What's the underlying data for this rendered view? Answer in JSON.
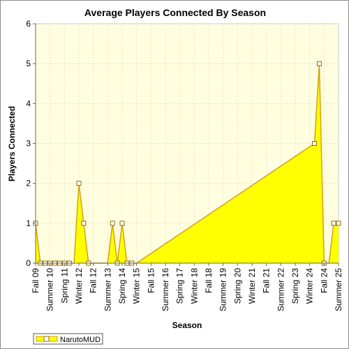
{
  "chart_data": {
    "type": "area",
    "title": "Average Players Connected By Season",
    "xlabel": "Season",
    "ylabel": "Players Connected",
    "ylim": [
      0,
      6
    ],
    "yticks": [
      0,
      1,
      2,
      3,
      4,
      5,
      6
    ],
    "grid": true,
    "legend_position": "bottom-left",
    "x_tick_labels": [
      "Fall 09",
      "Summer 10",
      "Spring 11",
      "Winter 12",
      "Fall 12",
      "Summer 13",
      "Spring 14",
      "Winter 15",
      "Fall 15",
      "Summer 16",
      "Spring 17",
      "Winter 18",
      "Fall 18",
      "Summer 19",
      "Spring 20",
      "Winter 21",
      "Fall 21",
      "Summer 22",
      "Spring 23",
      "Winter 24",
      "Fall 24",
      "Summer 25"
    ],
    "x_tick_positions": [
      0,
      3,
      6,
      9,
      12,
      15,
      18,
      21,
      24,
      27,
      30,
      33,
      36,
      39,
      42,
      45,
      48,
      51,
      54,
      57,
      60,
      63
    ],
    "categories_count": 64,
    "series": [
      {
        "name": "NarutoMUD",
        "color": "#ffff00",
        "stroke": "#d4a017",
        "points": [
          {
            "x": 0,
            "y": 1
          },
          {
            "x": 1,
            "y": 0
          },
          {
            "x": 2,
            "y": 0
          },
          {
            "x": 3,
            "y": 0
          },
          {
            "x": 4,
            "y": 0
          },
          {
            "x": 5,
            "y": 0
          },
          {
            "x": 6,
            "y": 0
          },
          {
            "x": 7,
            "y": 0
          },
          {
            "x": 9,
            "y": 2
          },
          {
            "x": 10,
            "y": 1
          },
          {
            "x": 11,
            "y": 0
          },
          {
            "x": 16,
            "y": 1
          },
          {
            "x": 17,
            "y": 0
          },
          {
            "x": 18,
            "y": 1
          },
          {
            "x": 19,
            "y": 0
          },
          {
            "x": 20,
            "y": 0
          },
          {
            "x": 58,
            "y": 3
          },
          {
            "x": 59,
            "y": 5
          },
          {
            "x": 60,
            "y": 0
          },
          {
            "x": 62,
            "y": 1
          },
          {
            "x": 63,
            "y": 1
          }
        ],
        "line": [
          {
            "x": 0,
            "y": 1
          },
          {
            "x": 1,
            "y": 0
          },
          {
            "x": 2,
            "y": 0
          },
          {
            "x": 3,
            "y": 0
          },
          {
            "x": 4,
            "y": 0
          },
          {
            "x": 5,
            "y": 0
          },
          {
            "x": 6,
            "y": 0
          },
          {
            "x": 7,
            "y": 0
          },
          {
            "x": 8,
            "y": 0
          },
          {
            "x": 9,
            "y": 2
          },
          {
            "x": 10,
            "y": 1
          },
          {
            "x": 11,
            "y": 0
          },
          {
            "x": 15,
            "y": 0
          },
          {
            "x": 16,
            "y": 1
          },
          {
            "x": 17,
            "y": 0
          },
          {
            "x": 18,
            "y": 1
          },
          {
            "x": 19,
            "y": 0
          },
          {
            "x": 20,
            "y": 0
          },
          {
            "x": 21,
            "y": 0
          },
          {
            "x": 58,
            "y": 3
          },
          {
            "x": 59,
            "y": 5
          },
          {
            "x": 60,
            "y": 0
          },
          {
            "x": 61,
            "y": 0
          },
          {
            "x": 62,
            "y": 1
          },
          {
            "x": 63,
            "y": 1
          }
        ]
      }
    ]
  }
}
